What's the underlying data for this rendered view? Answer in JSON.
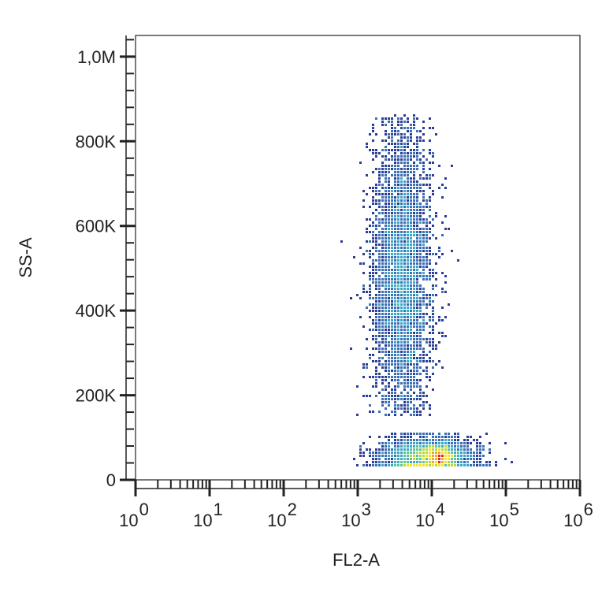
{
  "chart_data": {
    "type": "scatter",
    "subtype": "flow-cytometry-density-dot-plot",
    "xlabel": "FL2-A",
    "ylabel": "SS-A",
    "x_scale": "log",
    "xlim": [
      1,
      1000000
    ],
    "ylim": [
      0,
      1050000
    ],
    "x_ticks": [
      {
        "value": 1,
        "base": "10",
        "exp": "0"
      },
      {
        "value": 10,
        "base": "10",
        "exp": "1"
      },
      {
        "value": 100,
        "base": "10",
        "exp": "2"
      },
      {
        "value": 1000,
        "base": "10",
        "exp": "3"
      },
      {
        "value": 10000,
        "base": "10",
        "exp": "4"
      },
      {
        "value": 100000,
        "base": "10",
        "exp": "5"
      },
      {
        "value": 1000000,
        "base": "10",
        "exp": "6"
      }
    ],
    "y_ticks": [
      {
        "value": 0,
        "label": "0"
      },
      {
        "value": 200000,
        "label": "200K"
      },
      {
        "value": 400000,
        "label": "400K"
      },
      {
        "value": 600000,
        "label": "600K"
      },
      {
        "value": 800000,
        "label": "800K"
      },
      {
        "value": 1000000,
        "label": "1,0M"
      }
    ],
    "grid": false,
    "legend": "none",
    "density_colors": [
      "#2c3e94",
      "#3b6fb6",
      "#3aa6c8",
      "#58c49a",
      "#b6d93a",
      "#f2e42a",
      "#f5a623",
      "#e8261c"
    ],
    "populations": [
      {
        "name_hint": "main",
        "x_center": 4000,
        "x_log_spread": 0.2,
        "y_range": [
          150000,
          860000
        ],
        "y_peak": 480000,
        "points": 4200
      },
      {
        "name_hint": "low-ss",
        "x_center": 9000,
        "x_log_spread": 0.3,
        "y_range": [
          30000,
          110000
        ],
        "y_peak": 55000,
        "points": 2600
      },
      {
        "name_hint": "hot-core",
        "x_center": 13000,
        "x_log_spread": 0.1,
        "y_range": [
          40000,
          80000
        ],
        "y_peak": 55000,
        "points": 900
      }
    ]
  }
}
